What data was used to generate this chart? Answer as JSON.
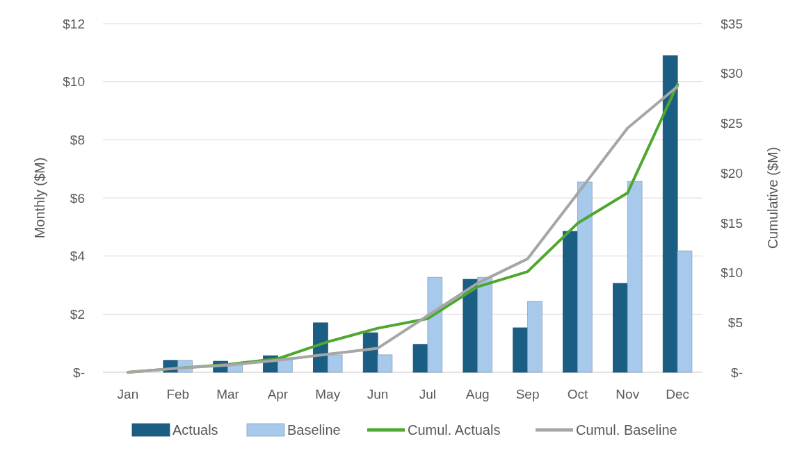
{
  "chart_data": {
    "type": "bar",
    "ylabel": "Monthly ($M)",
    "y2label": "Cumulative ($M)",
    "categories": [
      "Jan",
      "Feb",
      "Mar",
      "Apr",
      "May",
      "Jun",
      "Jul",
      "Aug",
      "Sep",
      "Oct",
      "Nov",
      "Dec"
    ],
    "series": [
      {
        "name": "Actuals",
        "color": "#1b5e84",
        "values": [
          0,
          0.41,
          0.38,
          0.57,
          1.7,
          1.36,
          0.96,
          3.2,
          1.53,
          4.85,
          3.06,
          10.9
        ]
      },
      {
        "name": "Baseline",
        "color": "#a6c9ec",
        "values": [
          0,
          0.41,
          0.3,
          0.5,
          0.6,
          0.6,
          3.27,
          3.27,
          2.44,
          6.55,
          6.57,
          4.18
        ]
      },
      {
        "name": "Cumul. Actuals",
        "type": "line",
        "axis": "y2",
        "color": "#4ea72e",
        "values": [
          0,
          0.41,
          0.79,
          1.36,
          3.06,
          4.42,
          5.38,
          8.58,
          10.1,
          14.95,
          18.0,
          28.9
        ]
      },
      {
        "name": "Cumul. Baseline",
        "type": "line",
        "axis": "y2",
        "color": "#a6a6a6",
        "values": [
          0,
          0.41,
          0.71,
          1.21,
          1.81,
          2.41,
          5.68,
          8.95,
          11.39,
          17.94,
          24.51,
          28.69
        ]
      }
    ],
    "ylim": [
      0,
      12
    ],
    "yticks": [
      {
        "value": 0,
        "label": "$-"
      },
      {
        "value": 2,
        "label": "$2"
      },
      {
        "value": 4,
        "label": "$4"
      },
      {
        "value": 6,
        "label": "$6"
      },
      {
        "value": 8,
        "label": "$8"
      },
      {
        "value": 10,
        "label": "$10"
      },
      {
        "value": 12,
        "label": "$12"
      }
    ],
    "y2lim": [
      0,
      35
    ],
    "y2ticks": [
      {
        "value": 0,
        "label": "$-"
      },
      {
        "value": 5,
        "label": "$5"
      },
      {
        "value": 10,
        "label": "$10"
      },
      {
        "value": 15,
        "label": "$15"
      },
      {
        "value": 20,
        "label": "$20"
      },
      {
        "value": 25,
        "label": "$25"
      },
      {
        "value": 30,
        "label": "$30"
      },
      {
        "value": 35,
        "label": "$35"
      }
    ],
    "grid": "y",
    "legend": "bottom",
    "marker": "none",
    "line_style": "solid"
  }
}
